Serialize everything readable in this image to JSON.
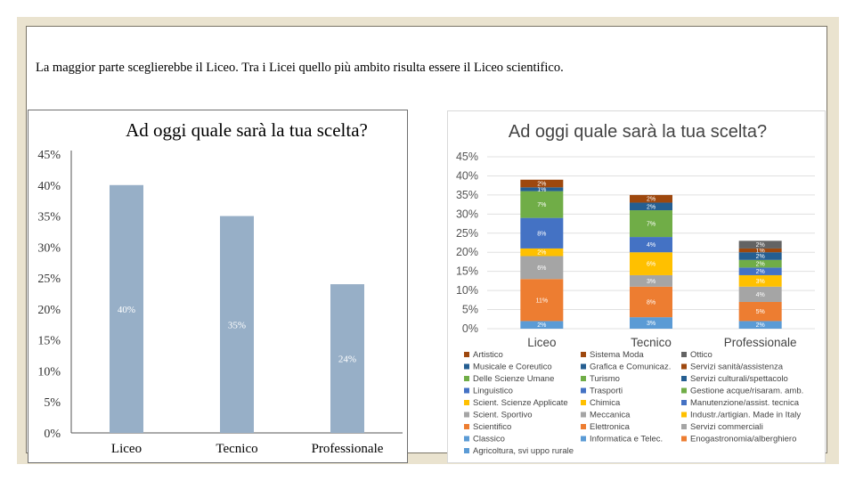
{
  "caption": "La maggior parte sceglierebbe il Liceo. Tra i Licei quello più ambito risulta essere il Liceo scientifico.",
  "chart_data": [
    {
      "type": "bar",
      "title": "Ad oggi quale sarà la tua scelta?",
      "categories": [
        "Liceo",
        "Tecnico",
        "Professionale"
      ],
      "values": [
        40,
        35,
        24
      ],
      "data_labels": [
        "40%",
        "35%",
        "24%"
      ],
      "ylim": [
        0,
        45
      ],
      "yticks": [
        "0%",
        "5%",
        "10%",
        "15%",
        "20%",
        "25%",
        "30%",
        "35%",
        "40%",
        "45%"
      ],
      "bar_color": "#97afc7",
      "grid": false
    },
    {
      "type": "bar",
      "stacked": true,
      "title": "Ad oggi quale sarà la tua scelta?",
      "categories": [
        "Liceo",
        "Tecnico",
        "Professionale"
      ],
      "ylim": [
        0,
        45
      ],
      "yticks": [
        "0%",
        "5%",
        "10%",
        "15%",
        "20%",
        "25%",
        "30%",
        "35%",
        "40%",
        "45%"
      ],
      "grid": true,
      "legend_position": "bottom",
      "stacks": [
        {
          "category": "Liceo",
          "segments": [
            {
              "name": "Classico",
              "value": 2,
              "label": "2%",
              "color": "#5b9bd5"
            },
            {
              "name": "Scientifico",
              "value": 11,
              "label": "11%",
              "color": "#ed7d31"
            },
            {
              "name": "Scient. Sportivo",
              "value": 6,
              "label": "6%",
              "color": "#a5a5a5"
            },
            {
              "name": "Scient. Scienze Applicate",
              "value": 2,
              "label": "2%",
              "color": "#ffc000"
            },
            {
              "name": "Linguistico",
              "value": 8,
              "label": "8%",
              "color": "#4472c4"
            },
            {
              "name": "Delle Scienze Umane",
              "value": 7,
              "label": "7%",
              "color": "#70ad47"
            },
            {
              "name": "Musicale e Coreutico",
              "value": 1,
              "label": "1%",
              "color": "#255e91"
            },
            {
              "name": "Artistico",
              "value": 2,
              "label": "2%",
              "color": "#9e480e"
            }
          ]
        },
        {
          "category": "Tecnico",
          "segments": [
            {
              "name": "Informatica e Telec.",
              "value": 3,
              "label": "3%",
              "color": "#5b9bd5"
            },
            {
              "name": "Elettronica",
              "value": 8,
              "label": "8%",
              "color": "#ed7d31"
            },
            {
              "name": "Meccanica",
              "value": 3,
              "label": "3%",
              "color": "#a5a5a5"
            },
            {
              "name": "Chimica",
              "value": 6,
              "label": "6%",
              "color": "#ffc000"
            },
            {
              "name": "Trasporti",
              "value": 4,
              "label": "4%",
              "color": "#4472c4"
            },
            {
              "name": "Turismo",
              "value": 7,
              "label": "7%",
              "color": "#70ad47"
            },
            {
              "name": "Grafica e Comunicaz.",
              "value": 2,
              "label": "2%",
              "color": "#255e91"
            },
            {
              "name": "Sistema Moda",
              "value": 2,
              "label": "2%",
              "color": "#9e480e"
            }
          ]
        },
        {
          "category": "Professionale",
          "segments": [
            {
              "name": "Agricoltura, svi uppo rurale",
              "value": 2,
              "label": "2%",
              "color": "#5b9bd5"
            },
            {
              "name": "Enogastronomia/alberghiero",
              "value": 5,
              "label": "5%",
              "color": "#ed7d31"
            },
            {
              "name": "Servizi commerciali",
              "value": 4,
              "label": "4%",
              "color": "#a5a5a5"
            },
            {
              "name": "Industr./artigian. Made in Italy",
              "value": 3,
              "label": "3%",
              "color": "#ffc000"
            },
            {
              "name": "Manutenzione/assist. tecnica",
              "value": 2,
              "label": "2%",
              "color": "#4472c4"
            },
            {
              "name": "Gestione acque/risaram. amb.",
              "value": 2,
              "label": "2%",
              "color": "#70ad47"
            },
            {
              "name": "Servizi culturali/spettacolo",
              "value": 2,
              "label": "2%",
              "color": "#255e91"
            },
            {
              "name": "Servizi sanità/assistenza",
              "value": 1,
              "label": "1%",
              "color": "#9e480e"
            },
            {
              "name": "Ottico",
              "value": 2,
              "label": "2%",
              "color": "#636363"
            }
          ]
        }
      ],
      "legend": [
        {
          "name": "Artistico",
          "color": "#9e480e"
        },
        {
          "name": "Sistema Moda",
          "color": "#9e480e"
        },
        {
          "name": "Ottico",
          "color": "#636363"
        },
        {
          "name": "Musicale e Coreutico",
          "color": "#255e91"
        },
        {
          "name": "Grafica e Comunicaz.",
          "color": "#255e91"
        },
        {
          "name": "Servizi sanità/assistenza",
          "color": "#9e480e"
        },
        {
          "name": "Delle Scienze Umane",
          "color": "#70ad47"
        },
        {
          "name": "Turismo",
          "color": "#70ad47"
        },
        {
          "name": "Servizi culturali/spettacolo",
          "color": "#255e91"
        },
        {
          "name": "Linguistico",
          "color": "#4472c4"
        },
        {
          "name": "Trasporti",
          "color": "#4472c4"
        },
        {
          "name": "Gestione acque/risaram. amb.",
          "color": "#70ad47"
        },
        {
          "name": "Scient. Scienze Applicate",
          "color": "#ffc000"
        },
        {
          "name": "Chimica",
          "color": "#ffc000"
        },
        {
          "name": "Manutenzione/assist. tecnica",
          "color": "#4472c4"
        },
        {
          "name": "Scient. Sportivo",
          "color": "#a5a5a5"
        },
        {
          "name": "Meccanica",
          "color": "#a5a5a5"
        },
        {
          "name": "Industr./artigian. Made in Italy",
          "color": "#ffc000"
        },
        {
          "name": "Scientifico",
          "color": "#ed7d31"
        },
        {
          "name": "Elettronica",
          "color": "#ed7d31"
        },
        {
          "name": "Servizi commerciali",
          "color": "#a5a5a5"
        },
        {
          "name": "Classico",
          "color": "#5b9bd5"
        },
        {
          "name": "Informatica e Telec.",
          "color": "#5b9bd5"
        },
        {
          "name": "Enogastronomia/alberghiero",
          "color": "#ed7d31"
        },
        {
          "name": "Agricoltura, svi uppo rurale",
          "color": "#5b9bd5"
        }
      ]
    }
  ]
}
